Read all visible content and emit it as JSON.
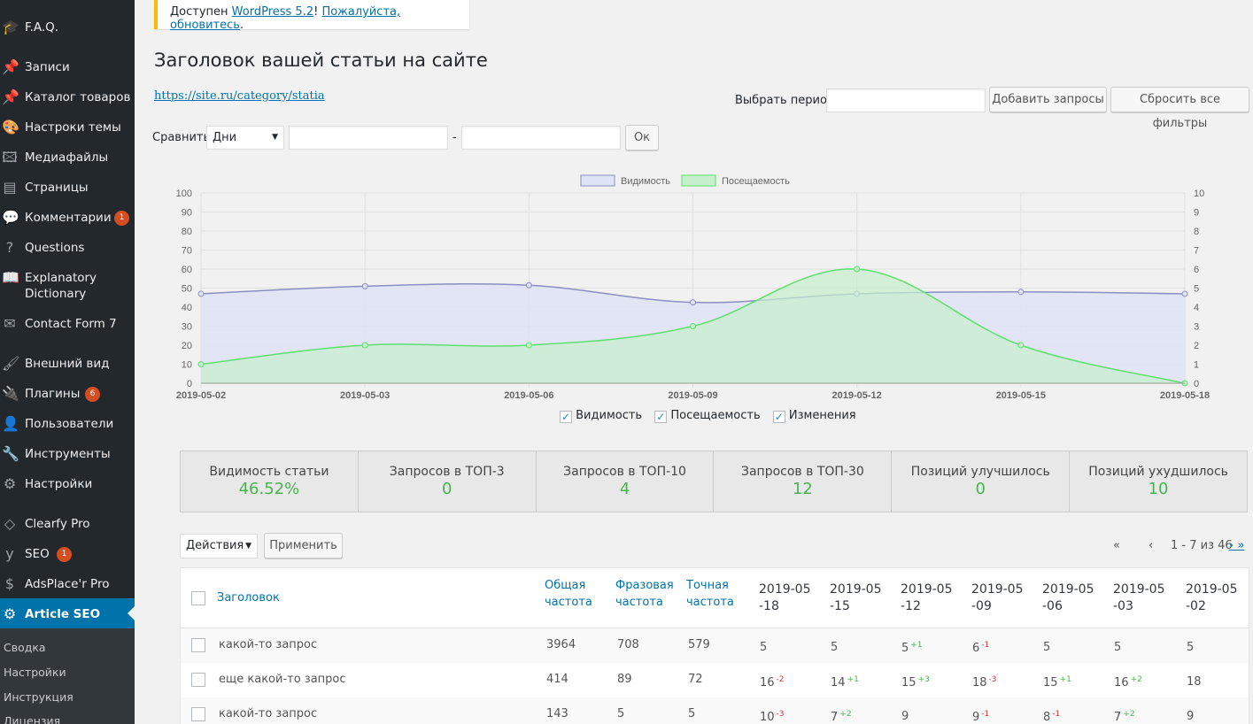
{
  "sidebar": {
    "items": [
      {
        "label": "F.A.Q.",
        "icon": "graduation-cap-icon",
        "glyph": "🎓"
      },
      {
        "label": "Записи",
        "icon": "pin-icon",
        "glyph": "📌"
      },
      {
        "label": "Каталог товаров",
        "icon": "pin-icon",
        "glyph": "📌"
      },
      {
        "label": "Настроки темы",
        "icon": "palette-icon",
        "glyph": "🎨"
      },
      {
        "label": "Медиафайлы",
        "icon": "media-icon",
        "glyph": "🖾"
      },
      {
        "label": "Страницы",
        "icon": "pages-icon",
        "glyph": "▤"
      },
      {
        "label": "Комментарии",
        "icon": "comment-icon",
        "glyph": "💬",
        "badge": "1"
      },
      {
        "label": "Questions",
        "icon": "question-icon",
        "glyph": "?"
      },
      {
        "label": "Explanatory Dictionary",
        "icon": "book-icon",
        "glyph": "📖"
      },
      {
        "label": "Contact Form 7",
        "icon": "mail-icon",
        "glyph": "✉"
      },
      {
        "label": "Внешний вид",
        "icon": "brush-icon",
        "glyph": "🖌"
      },
      {
        "label": "Плагины",
        "icon": "plugin-icon",
        "glyph": "🔌",
        "badge": "6"
      },
      {
        "label": "Пользователи",
        "icon": "user-icon",
        "glyph": "👤"
      },
      {
        "label": "Инструменты",
        "icon": "wrench-icon",
        "glyph": "🔧"
      },
      {
        "label": "Настройки",
        "icon": "settings-icon",
        "glyph": "⚙"
      },
      {
        "label": "Clearfy Pro",
        "icon": "diamond-icon",
        "glyph": "◇"
      },
      {
        "label": "SEO",
        "icon": "yoast-icon",
        "glyph": "y",
        "badge": "1"
      },
      {
        "label": "AdsPlace'r Pro",
        "icon": "dollar-icon",
        "glyph": "$"
      },
      {
        "label": "Article SEO",
        "icon": "gear-icon",
        "glyph": "⚙"
      }
    ],
    "submenu": [
      "Сводка",
      "Настройки",
      "Инструкция",
      "Лицензия"
    ]
  },
  "notice": {
    "prefix": "Доступен ",
    "link1": "WordPress 5.2",
    "sep": "! ",
    "link2": "Пожалуйста, обновитесь",
    "suffix": "."
  },
  "page": {
    "title": "Заголовок вашей статьи на сайте",
    "url": "https://site.ru/category/statia"
  },
  "filters": {
    "period_label": "Выбрать период",
    "add_button": "Добавить запросы",
    "reset_button": "Сбросить все фильтры",
    "compare_label": "Сравнить",
    "compare_select": "Дни",
    "dash": "-",
    "ok_button": "Ок"
  },
  "chart_data": {
    "type": "area",
    "x": [
      "2019-05-02",
      "2019-05-03",
      "2019-05-06",
      "2019-05-09",
      "2019-05-12",
      "2019-05-15",
      "2019-05-18"
    ],
    "series": [
      {
        "name": "Видимость",
        "axis": "left",
        "values": [
          47,
          51,
          51.5,
          42.5,
          47,
          48,
          47
        ],
        "color": "#8a8fc0",
        "fill": "#dfe3f7"
      },
      {
        "name": "Посещаемость",
        "axis": "right",
        "values": [
          1,
          2,
          2,
          3,
          6,
          2,
          0
        ],
        "color": "#5ee070",
        "fill": "#c6f0cc"
      }
    ],
    "yleft": [
      0,
      100
    ],
    "yright": [
      0,
      10
    ],
    "yleft_ticks": [
      "0",
      "10",
      "20",
      "30",
      "40",
      "50",
      "60",
      "70",
      "80",
      "90",
      "100"
    ],
    "yright_ticks": [
      "0",
      "1",
      "2",
      "3",
      "4",
      "5",
      "6",
      "7",
      "8",
      "9",
      "10"
    ],
    "grid": true,
    "legend_position": "top"
  },
  "chart_toggles": [
    {
      "label": "Видимость",
      "checked": "✓"
    },
    {
      "label": "Посещаемость",
      "checked": "✓"
    },
    {
      "label": "Изменения",
      "checked": "✓"
    }
  ],
  "stats": [
    {
      "title": "Видимость статьи",
      "value": "46.52%"
    },
    {
      "title": "Запросов в ТОП-3",
      "value": "0"
    },
    {
      "title": "Запросов в ТОП-10",
      "value": "4"
    },
    {
      "title": "Запросов в ТОП-30",
      "value": "12"
    },
    {
      "title": "Позиций улучшилось",
      "value": "0"
    },
    {
      "title": "Позиций ухудшилось",
      "value": "10"
    }
  ],
  "bulk": {
    "select": "Действия",
    "apply": "Применить"
  },
  "pagination": {
    "first": "«",
    "prev": "‹",
    "info": "1 - 7 из 46",
    "next": "› »"
  },
  "table": {
    "headers": {
      "title": "Заголовок",
      "freq_total": "Общая частота",
      "freq_phrase": "Фразовая частота",
      "freq_exact": "Точная частота"
    },
    "dates": [
      "2019-05-18",
      "2019-05-15",
      "2019-05-12",
      "2019-05-09",
      "2019-05-06",
      "2019-05-03",
      "2019-05-02"
    ],
    "rows": [
      {
        "title": "какой-то запрос",
        "total": "3964",
        "phrase": "708",
        "exact": "579",
        "pos": [
          {
            "v": "5",
            "d": ""
          },
          {
            "v": "5",
            "d": ""
          },
          {
            "v": "5",
            "d": "+1"
          },
          {
            "v": "6",
            "d": "-1"
          },
          {
            "v": "5",
            "d": ""
          },
          {
            "v": "5",
            "d": ""
          },
          {
            "v": "5",
            "d": ""
          }
        ]
      },
      {
        "title": "еще какой-то запрос",
        "total": "414",
        "phrase": "89",
        "exact": "72",
        "pos": [
          {
            "v": "16",
            "d": "-2"
          },
          {
            "v": "14",
            "d": "+1"
          },
          {
            "v": "15",
            "d": "+3"
          },
          {
            "v": "18",
            "d": "-3"
          },
          {
            "v": "15",
            "d": "+1"
          },
          {
            "v": "16",
            "d": "+2"
          },
          {
            "v": "18",
            "d": ""
          }
        ]
      },
      {
        "title": "какой-то запрос",
        "total": "143",
        "phrase": "5",
        "exact": "5",
        "pos": [
          {
            "v": "10",
            "d": "-3"
          },
          {
            "v": "7",
            "d": "+2"
          },
          {
            "v": "9",
            "d": ""
          },
          {
            "v": "9",
            "d": "-1"
          },
          {
            "v": "8",
            "d": "-1"
          },
          {
            "v": "7",
            "d": "+2"
          },
          {
            "v": "9",
            "d": ""
          }
        ]
      }
    ]
  }
}
